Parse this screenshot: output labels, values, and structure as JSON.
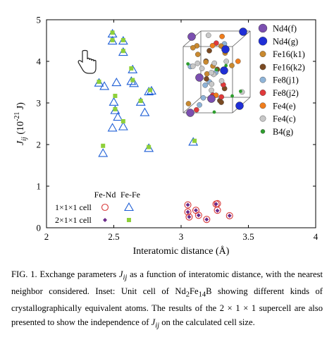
{
  "chart_data": {
    "type": "scatter",
    "xlabel": "Interatomic distance (Å)",
    "ylabel_main": "J",
    "ylabel_sub": "ij",
    "ylabel_rest": " (10",
    "ylabel_exp": "-21",
    "ylabel_end": " J)",
    "xlim": [
      2,
      4
    ],
    "ylim": [
      0,
      5
    ],
    "xticks": [
      "2",
      "2.5",
      "3",
      "3.5",
      "4"
    ],
    "yticks": [
      "0",
      "1",
      "2",
      "3",
      "4",
      "5"
    ],
    "legend": {
      "col_fe_nd": "Fe-Nd",
      "col_fe_fe": "Fe-Fe",
      "row1": "1×1×1 cell",
      "row2": "2×1×1 cell"
    },
    "series": [
      {
        "key": "fefe_111",
        "marker": "open-triangle",
        "color": "#1f5fd6",
        "points": [
          [
            2.49,
            4.66
          ],
          [
            2.49,
            4.49
          ],
          [
            2.57,
            4.49
          ],
          [
            2.57,
            4.22
          ],
          [
            2.64,
            3.8
          ],
          [
            2.63,
            3.52
          ],
          [
            2.65,
            3.47
          ],
          [
            2.39,
            3.48
          ],
          [
            2.43,
            3.4
          ],
          [
            2.52,
            3.49
          ],
          [
            2.7,
            3.02
          ],
          [
            2.78,
            3.29
          ],
          [
            2.76,
            3.27
          ],
          [
            2.5,
            3.02
          ],
          [
            2.51,
            2.82
          ],
          [
            2.53,
            2.66
          ],
          [
            2.73,
            2.77
          ],
          [
            2.49,
            2.4
          ],
          [
            2.57,
            2.43
          ],
          [
            2.42,
            1.79
          ],
          [
            2.76,
            1.91
          ],
          [
            3.09,
            2.06
          ]
        ]
      },
      {
        "key": "fend_111",
        "marker": "open-circle",
        "color": "#d83a3a",
        "points": [
          [
            3.05,
            0.55
          ],
          [
            3.05,
            0.38
          ],
          [
            3.06,
            0.26
          ],
          [
            3.11,
            0.42
          ],
          [
            3.13,
            0.3
          ],
          [
            3.19,
            0.2
          ],
          [
            3.26,
            0.57
          ],
          [
            3.27,
            0.58
          ],
          [
            3.27,
            0.42
          ],
          [
            3.36,
            0.29
          ]
        ]
      },
      {
        "key": "fefe_211",
        "marker": "filled-square",
        "color": "#8ed03a",
        "points": [
          [
            2.49,
            4.69
          ],
          [
            2.49,
            4.51
          ],
          [
            2.57,
            4.51
          ],
          [
            2.57,
            4.25
          ],
          [
            2.63,
            3.83
          ],
          [
            2.64,
            3.55
          ],
          [
            2.39,
            3.51
          ],
          [
            2.51,
            3.17
          ],
          [
            2.51,
            2.85
          ],
          [
            2.57,
            2.56
          ],
          [
            2.42,
            1.97
          ],
          [
            2.76,
            1.94
          ],
          [
            3.1,
            2.09
          ],
          [
            2.77,
            3.31
          ],
          [
            2.7,
            3.05
          ]
        ]
      },
      {
        "key": "fend_211",
        "marker": "filled-diamond",
        "color": "#6a2a8a",
        "points": [
          [
            3.05,
            0.55
          ],
          [
            3.05,
            0.38
          ],
          [
            3.06,
            0.26
          ],
          [
            3.11,
            0.42
          ],
          [
            3.13,
            0.3
          ],
          [
            3.19,
            0.2
          ],
          [
            3.26,
            0.57
          ],
          [
            3.27,
            0.41
          ],
          [
            3.36,
            0.29
          ]
        ]
      }
    ]
  },
  "inset": {
    "legend": [
      {
        "label": "Nd4(f)",
        "color": "#7b4fb0",
        "size": "large"
      },
      {
        "label": "Nd4(g)",
        "color": "#1f2fd6",
        "size": "large"
      },
      {
        "label": "Fe16(k1)",
        "color": "#c9892f",
        "size": "medium"
      },
      {
        "label": "Fe16(k2)",
        "color": "#7a4a22",
        "size": "medium"
      },
      {
        "label": "Fe8(j1)",
        "color": "#8fb4d8",
        "size": "medium"
      },
      {
        "label": "Fe8(j2)",
        "color": "#e0393a",
        "size": "medium"
      },
      {
        "label": "Fe4(e)",
        "color": "#f07d1c",
        "size": "medium"
      },
      {
        "label": "Fe4(c)",
        "color": "#c8c8c8",
        "size": "medium"
      },
      {
        "label": "B4(g)",
        "color": "#2e9e2e",
        "size": "small"
      }
    ]
  },
  "caption": {
    "fig_label": "FIG. 1.",
    "t1": " Exchange parameters ",
    "j": "J",
    "ij": "ij",
    "t2": " as a function of interatomic distance, with the nearest neighbor considered. Inset: Unit cell of Nd",
    "s1": "2",
    "t3": "Fe",
    "s2": "14",
    "t4": "B showing different kinds of crystallographically equivalent atoms. The results of the 2 × 1 × 1 supercell are also presented to show the independence of ",
    "j2": "J",
    "ij2": "ij",
    "t5": " on the calculated cell size."
  }
}
